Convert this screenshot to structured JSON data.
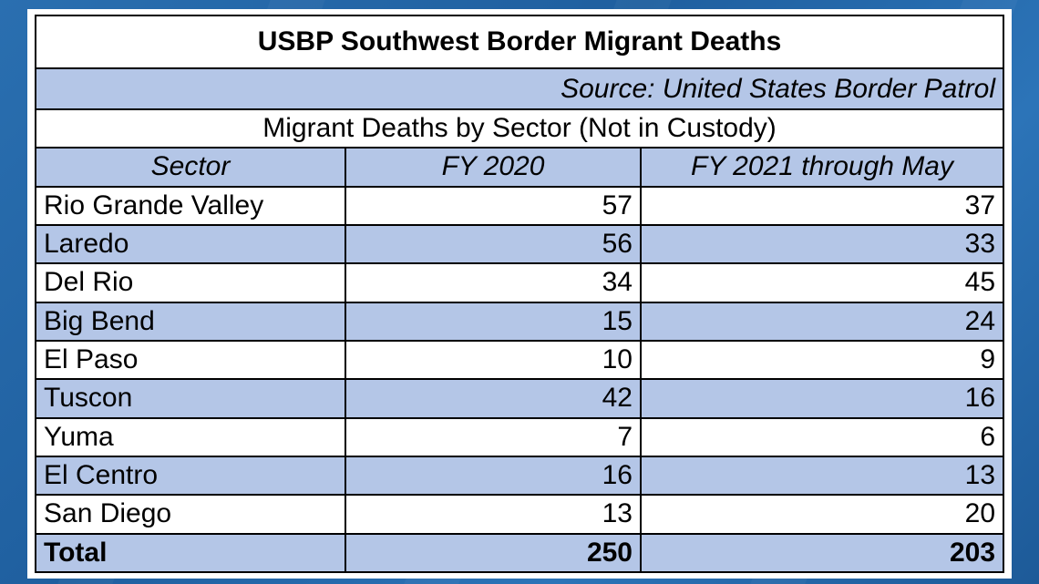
{
  "table": {
    "title": "USBP Southwest Border Migrant Deaths",
    "source": "Source: United States Border Patrol",
    "subtitle": "Migrant Deaths by Sector (Not in Custody)",
    "headers": [
      "Sector",
      "FY 2020",
      "FY 2021  through May"
    ],
    "rows": [
      {
        "sector": "Rio Grande Valley",
        "fy2020": "57",
        "fy2021": "37"
      },
      {
        "sector": "Laredo",
        "fy2020": "56",
        "fy2021": "33"
      },
      {
        "sector": "Del Rio",
        "fy2020": "34",
        "fy2021": "45"
      },
      {
        "sector": "Big Bend",
        "fy2020": "15",
        "fy2021": "24"
      },
      {
        "sector": "El Paso",
        "fy2020": "10",
        "fy2021": "9"
      },
      {
        "sector": "Tuscon",
        "fy2020": "42",
        "fy2021": "16"
      },
      {
        "sector": "Yuma",
        "fy2020": "7",
        "fy2021": "6"
      },
      {
        "sector": "El Centro",
        "fy2020": "16",
        "fy2021": "13"
      },
      {
        "sector": "San Diego",
        "fy2020": "13",
        "fy2021": "20"
      }
    ],
    "total": {
      "label": "Total",
      "fy2020": "250",
      "fy2021": "203"
    }
  },
  "colors": {
    "row_blue": "#b4c6e7",
    "background": "#2a6fb0"
  }
}
